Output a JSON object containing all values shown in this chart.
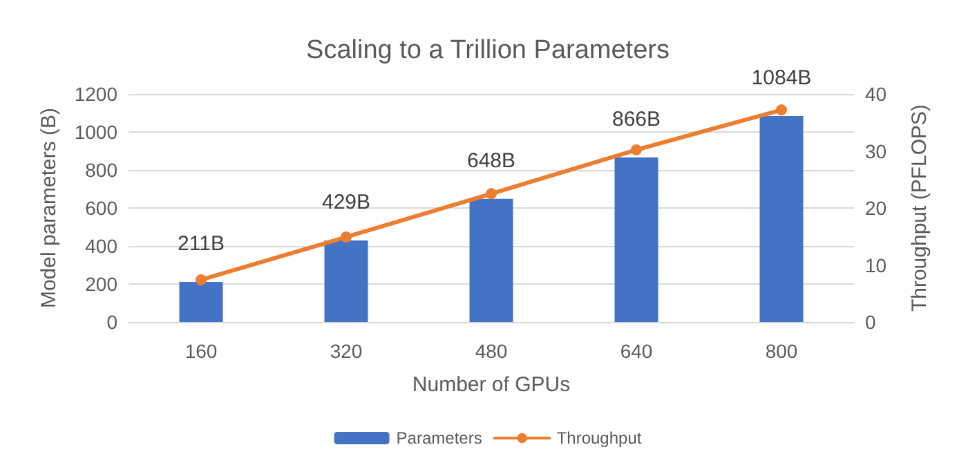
{
  "chart_data": {
    "type": "bar",
    "title": "Scaling to a Trillion Parameters",
    "xlabel": "Number of GPUs",
    "ylabel": "Model parameters (B)",
    "y2label": "Throughput (PFLOPS)",
    "categories": [
      "160",
      "320",
      "480",
      "640",
      "800"
    ],
    "series": [
      {
        "name": "Parameters",
        "color": "#4472c4",
        "values": [
          211,
          429,
          648,
          866,
          1084
        ],
        "value_labels": [
          "211B",
          "429B",
          "648B",
          "866B",
          "1084B"
        ]
      },
      {
        "name": "Throughput",
        "type": "line",
        "axis": "y2",
        "color": "#ed7d31",
        "marker": "circle",
        "values": [
          7.4,
          14.9,
          22.5,
          30.2,
          37.2
        ]
      }
    ],
    "ylim": [
      0,
      1200
    ],
    "yticks": [
      0,
      200,
      400,
      600,
      800,
      1000,
      1200
    ],
    "y2lim": [
      0,
      40
    ],
    "y2ticks": [
      0,
      10,
      20,
      30,
      40
    ],
    "grid": "y",
    "legend": "bottom"
  }
}
